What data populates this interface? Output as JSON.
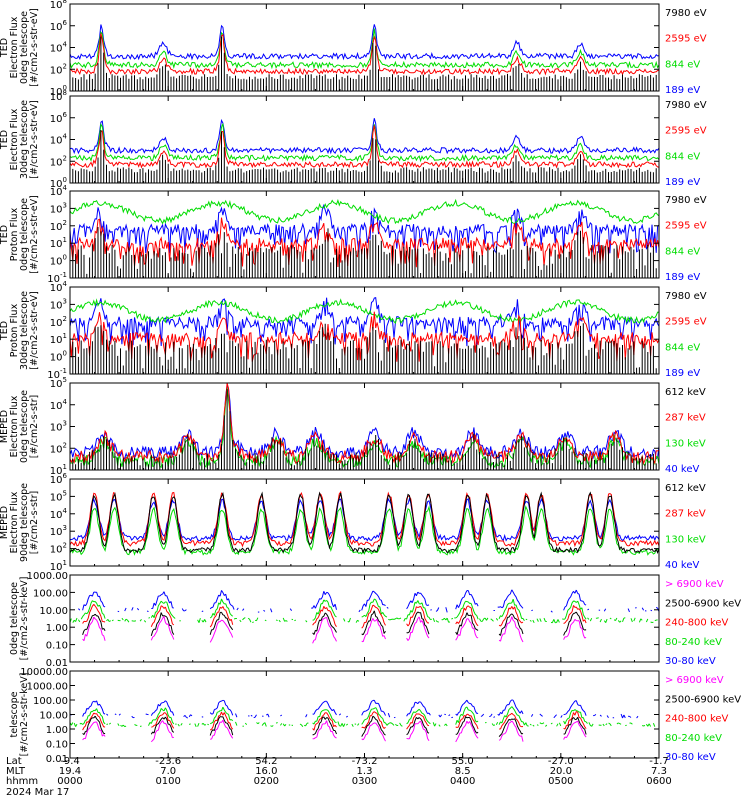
{
  "chart_data": {
    "type": "line",
    "date_label": "2024 Mar 17",
    "x_axis": {
      "row_labels": [
        "Lat",
        "MLT",
        "hhmm"
      ],
      "ticks": [
        {
          "lat": "-9.4",
          "mlt": "19.4",
          "hhmm": "0000"
        },
        {
          "lat": "-23.6",
          "mlt": "7.0",
          "hhmm": "0100"
        },
        {
          "lat": "54.2",
          "mlt": "16.0",
          "hhmm": "0200"
        },
        {
          "lat": "-73.2",
          "mlt": "1.3",
          "hhmm": "0300"
        },
        {
          "lat": "55.0",
          "mlt": "8.5",
          "hhmm": "0400"
        },
        {
          "lat": "-27.0",
          "mlt": "20.0",
          "hhmm": "0500"
        },
        {
          "lat": "-1.7",
          "mlt": "7.3",
          "hhmm": "0600"
        }
      ],
      "range_hours": [
        0,
        6
      ]
    },
    "colors": {
      "blue": "#0000ff",
      "red": "#ff0000",
      "green": "#00dd00",
      "black": "#000000",
      "magenta": "#ff00ff"
    },
    "panels": [
      {
        "ylabel": [
          "TED",
          "Electron Flux",
          "0deg telescope",
          "[#/cm2-s-str-eV]"
        ],
        "log": true,
        "ymin_exp": 0,
        "ymax_exp": 8,
        "tick_exps": [
          0,
          2,
          4,
          6,
          8
        ],
        "tick_format": "pow10",
        "pattern": "ted_e",
        "series": [
          {
            "name": "7980 eV",
            "color": "black",
            "level": 1.3
          },
          {
            "name": "2595 eV",
            "color": "red",
            "level": 1.8
          },
          {
            "name": "844 eV",
            "color": "green",
            "level": 2.4
          },
          {
            "name": "189 eV",
            "color": "blue",
            "level": 3.2
          }
        ]
      },
      {
        "ylabel": [
          "TED",
          "Electron Flux",
          "30deg telescope",
          "[#/cm2-s-str-eV]"
        ],
        "log": true,
        "ymin_exp": 0,
        "ymax_exp": 8,
        "tick_exps": [
          0,
          2,
          4,
          6,
          8
        ],
        "tick_format": "pow10",
        "pattern": "ted_e",
        "series": [
          {
            "name": "7980 eV",
            "color": "black",
            "level": 1.2
          },
          {
            "name": "2595 eV",
            "color": "red",
            "level": 1.7
          },
          {
            "name": "844 eV",
            "color": "green",
            "level": 2.3
          },
          {
            "name": "189 eV",
            "color": "blue",
            "level": 3.0
          }
        ]
      },
      {
        "ylabel": [
          "TED",
          "Proton Flux",
          "0deg telescope",
          "[#/cm2-s-str-eV]"
        ],
        "log": true,
        "ymin_exp": -1,
        "ymax_exp": 4,
        "tick_exps": [
          -1,
          0,
          1,
          2,
          3,
          4
        ],
        "tick_format": "pow10",
        "pattern": "ted_p",
        "series": [
          {
            "name": "7980 eV",
            "color": "black",
            "level": 0.6
          },
          {
            "name": "2595 eV",
            "color": "red",
            "level": 1.0
          },
          {
            "name": "844 eV",
            "color": "green",
            "level": 2.8
          },
          {
            "name": "189 eV",
            "color": "blue",
            "level": 1.8
          }
        ]
      },
      {
        "ylabel": [
          "TED",
          "Proton Flux",
          "30deg telescope",
          "[#/cm2-s-str-eV]"
        ],
        "log": true,
        "ymin_exp": -1,
        "ymax_exp": 4,
        "tick_exps": [
          -1,
          0,
          1,
          2,
          3,
          4
        ],
        "tick_format": "pow10",
        "pattern": "ted_p",
        "series": [
          {
            "name": "7980 eV",
            "color": "black",
            "level": 0.7
          },
          {
            "name": "2595 eV",
            "color": "red",
            "level": 1.1
          },
          {
            "name": "844 eV",
            "color": "green",
            "level": 2.6
          },
          {
            "name": "189 eV",
            "color": "blue",
            "level": 2.0
          }
        ]
      },
      {
        "ylabel": [
          "MEPED",
          "Electron Flux",
          "0deg telescope",
          "[#/cm2-s-str]"
        ],
        "log": true,
        "ymin_exp": 1,
        "ymax_exp": 5,
        "tick_exps": [
          1,
          2,
          3,
          4,
          5
        ],
        "tick_format": "pow10",
        "pattern": "meped_e0",
        "series": [
          {
            "name": "612 keV",
            "color": "black",
            "level": 1.5
          },
          {
            "name": "287 keV",
            "color": "red",
            "level": 1.6
          },
          {
            "name": "130 keV",
            "color": "green",
            "level": 1.4
          },
          {
            "name": "40 keV",
            "color": "blue",
            "level": 1.8
          }
        ]
      },
      {
        "ylabel": [
          "MEPED",
          "Electron Flux",
          "90deg telescope",
          "[#/cm2-s-str]"
        ],
        "log": true,
        "ymin_exp": 1,
        "ymax_exp": 6,
        "tick_exps": [
          1,
          2,
          3,
          4,
          5,
          6
        ],
        "tick_format": "pow10",
        "pattern": "meped_e90",
        "series": [
          {
            "name": "612 keV",
            "color": "black",
            "level": 1.9
          },
          {
            "name": "287 keV",
            "color": "red",
            "level": 2.3
          },
          {
            "name": "130 keV",
            "color": "green",
            "level": 1.8
          },
          {
            "name": "40 keV",
            "color": "blue",
            "level": 2.6
          }
        ]
      },
      {
        "ylabel": [
          "0deg telescope",
          "[#/cm2-s-str-keV]"
        ],
        "log": true,
        "ymin_exp": -2,
        "ymax_exp": 3,
        "tick_exps": [
          -2,
          -1,
          0,
          1,
          2,
          3
        ],
        "tick_format": "decimal",
        "tick_labels": [
          "0.01",
          "0.10",
          "1.00",
          "10.00",
          "100.00",
          "1000.00"
        ],
        "pattern": "meped_p",
        "series": [
          {
            "name": "> 6900 keV",
            "color": "magenta",
            "level": -0.9
          },
          {
            "name": "2500-6900 keV",
            "color": "black",
            "level": -0.5
          },
          {
            "name": "240-800 keV",
            "color": "red",
            "level": 0.0
          },
          {
            "name": "80-240 keV",
            "color": "green",
            "level": 0.4
          },
          {
            "name": "30-80 keV",
            "color": "blue",
            "level": 1.0
          }
        ]
      },
      {
        "ylabel": [
          "telescope",
          "[#/cm2-s-str-keV]"
        ],
        "log": true,
        "ymin_exp": -2,
        "ymax_exp": 4,
        "tick_exps": [
          -2,
          -1,
          0,
          1,
          2,
          3,
          4
        ],
        "tick_format": "decimal",
        "tick_labels": [
          "0.01",
          "0.10",
          "1.00",
          "10.00",
          "100.00",
          "1000.00",
          "10000.00"
        ],
        "pattern": "meped_p",
        "series": [
          {
            "name": "> 6900 keV",
            "color": "magenta",
            "level": -0.9
          },
          {
            "name": "2500-6900 keV",
            "color": "black",
            "level": -0.5
          },
          {
            "name": "240-800 keV",
            "color": "red",
            "level": -0.1
          },
          {
            "name": "80-240 keV",
            "color": "green",
            "level": 0.3
          },
          {
            "name": "30-80 keV",
            "color": "blue",
            "level": 0.9
          }
        ]
      }
    ]
  }
}
